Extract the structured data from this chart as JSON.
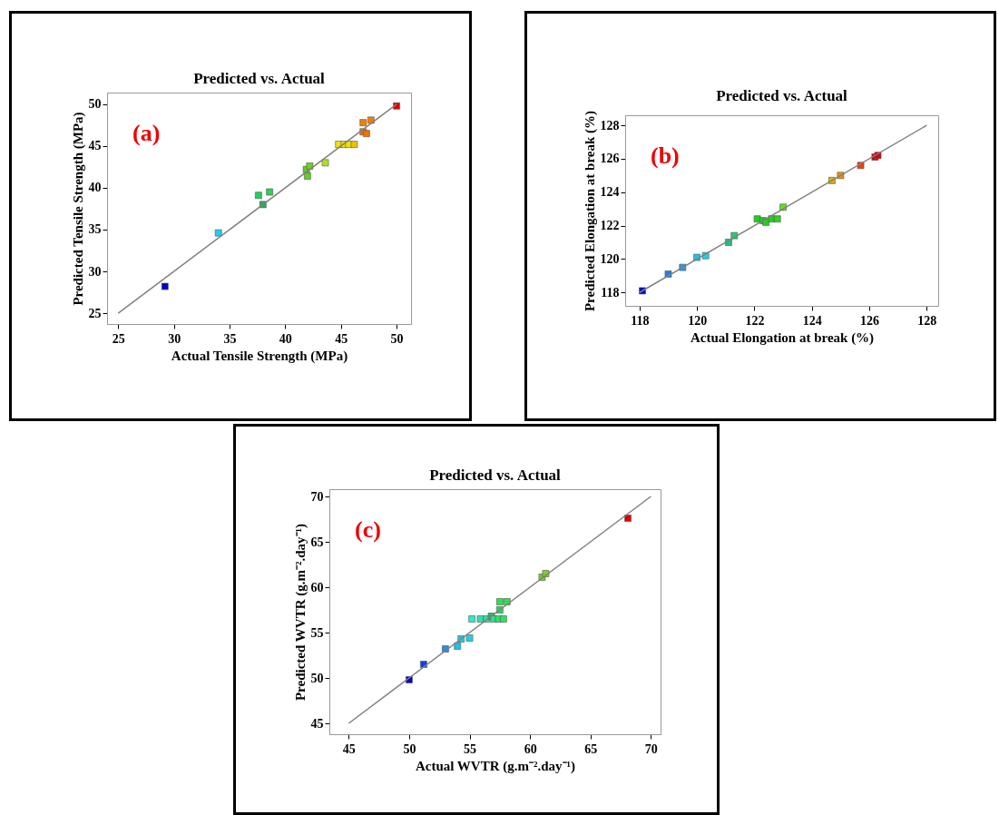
{
  "chart_data": [
    {
      "type": "scatter",
      "title": "Predicted vs. Actual",
      "xlabel": "Actual Tensile Strength (MPa)",
      "ylabel": "Predicted Tensile Strength (MPa)",
      "annotations": [
        "(a)"
      ],
      "grid": false,
      "xlim": [
        24,
        51.3
      ],
      "ylim": [
        23.7,
        51.4
      ],
      "xticks": [
        25,
        30,
        35,
        40,
        45,
        50
      ],
      "yticks": [
        25,
        30,
        35,
        40,
        45,
        50
      ],
      "series": [
        {
          "type": "scatter",
          "marker": "square",
          "x": [
            29.2,
            34.0,
            37.6,
            38.6,
            38.0,
            41.9,
            42.2,
            42.0,
            43.6,
            44.8,
            45.3,
            45.7,
            46.2,
            47.0,
            47.7,
            47.0,
            47.3,
            50.0
          ],
          "values": [
            28.2,
            34.6,
            39.1,
            39.5,
            38.0,
            42.2,
            42.6,
            41.4,
            43.0,
            45.2,
            45.2,
            45.2,
            45.2,
            47.8,
            48.1,
            46.7,
            46.5,
            49.8
          ],
          "colors": [
            "#0000d0",
            "#20d0e8",
            "#20d060",
            "#30d050",
            "#20b050",
            "#60d020",
            "#70d020",
            "#60d020",
            "#b0e020",
            "#f0e000",
            "#f0e000",
            "#f0e000",
            "#f0c000",
            "#f08000",
            "#f08000",
            "#f07000",
            "#f07000",
            "#e00000"
          ]
        },
        {
          "type": "line",
          "x": [
            25,
            50
          ],
          "values": [
            25,
            50
          ],
          "color": "#808080"
        }
      ]
    },
    {
      "type": "scatter",
      "title": "Predicted vs. Actual",
      "xlabel": "Actual Elongation at break (%)",
      "ylabel": "Predicted Elongation at break (%)",
      "annotations": [
        "(b)"
      ],
      "grid": false,
      "xlim": [
        117.5,
        128.4
      ],
      "ylim": [
        117.2,
        128.6
      ],
      "xticks": [
        118,
        120,
        122,
        124,
        126,
        128
      ],
      "yticks": [
        118,
        120,
        122,
        124,
        126,
        128
      ],
      "series": [
        {
          "type": "scatter",
          "marker": "square",
          "x": [
            118.1,
            119.0,
            119.5,
            120.0,
            120.3,
            121.1,
            121.3,
            122.1,
            122.3,
            122.4,
            122.6,
            122.8,
            123.0,
            124.7,
            125.0,
            125.7,
            126.2,
            126.3
          ],
          "values": [
            118.1,
            119.1,
            119.5,
            120.1,
            120.2,
            121.0,
            121.4,
            122.4,
            122.3,
            122.2,
            122.4,
            122.4,
            123.1,
            124.7,
            125.0,
            125.6,
            126.1,
            126.2
          ],
          "colors": [
            "#0000d0",
            "#2080e0",
            "#20a0e8",
            "#20c0f0",
            "#20d0e0",
            "#20c080",
            "#20d070",
            "#20d020",
            "#20d020",
            "#20d020",
            "#20d020",
            "#30d020",
            "#60e020",
            "#e0b000",
            "#f09000",
            "#f04000",
            "#e00000",
            "#e00000"
          ]
        },
        {
          "type": "line",
          "x": [
            118,
            128
          ],
          "values": [
            118,
            128
          ],
          "color": "#808080"
        }
      ]
    },
    {
      "type": "scatter",
      "title": "Predicted vs. Actual",
      "xlabel": "Actual WVTR (g.m⁻².day⁻¹)",
      "ylabel": "Predicted WVTR (g.m⁻².day⁻¹)",
      "annotations": [
        "(c)"
      ],
      "grid": false,
      "xlim": [
        43.4,
        70.8
      ],
      "ylim": [
        43.8,
        70.8
      ],
      "xticks": [
        45,
        50,
        55,
        60,
        65,
        70
      ],
      "yticks": [
        45,
        50,
        55,
        60,
        65,
        70
      ],
      "series": [
        {
          "type": "scatter",
          "marker": "square",
          "x": [
            50.0,
            51.2,
            53.0,
            54.0,
            54.3,
            55.0,
            55.2,
            55.9,
            56.4,
            56.8,
            57.0,
            57.4,
            57.8,
            57.5,
            57.5,
            58.1,
            61.0,
            61.3,
            68.1
          ],
          "values": [
            49.8,
            51.5,
            53.2,
            53.5,
            54.3,
            54.4,
            56.5,
            56.5,
            56.5,
            56.8,
            56.5,
            56.5,
            56.5,
            57.5,
            58.4,
            58.4,
            61.1,
            61.5,
            67.6
          ],
          "colors": [
            "#0000d0",
            "#1040e0",
            "#2090e0",
            "#20c0e8",
            "#20c8e0",
            "#20d0e0",
            "#30e8c8",
            "#30e0b0",
            "#30e0a0",
            "#20c060",
            "#30e080",
            "#30e070",
            "#30e060",
            "#30d060",
            "#30e050",
            "#30e050",
            "#70d020",
            "#80d020",
            "#e00000"
          ]
        },
        {
          "type": "line",
          "x": [
            45,
            70
          ],
          "values": [
            45,
            70
          ],
          "color": "#808080"
        }
      ]
    }
  ]
}
